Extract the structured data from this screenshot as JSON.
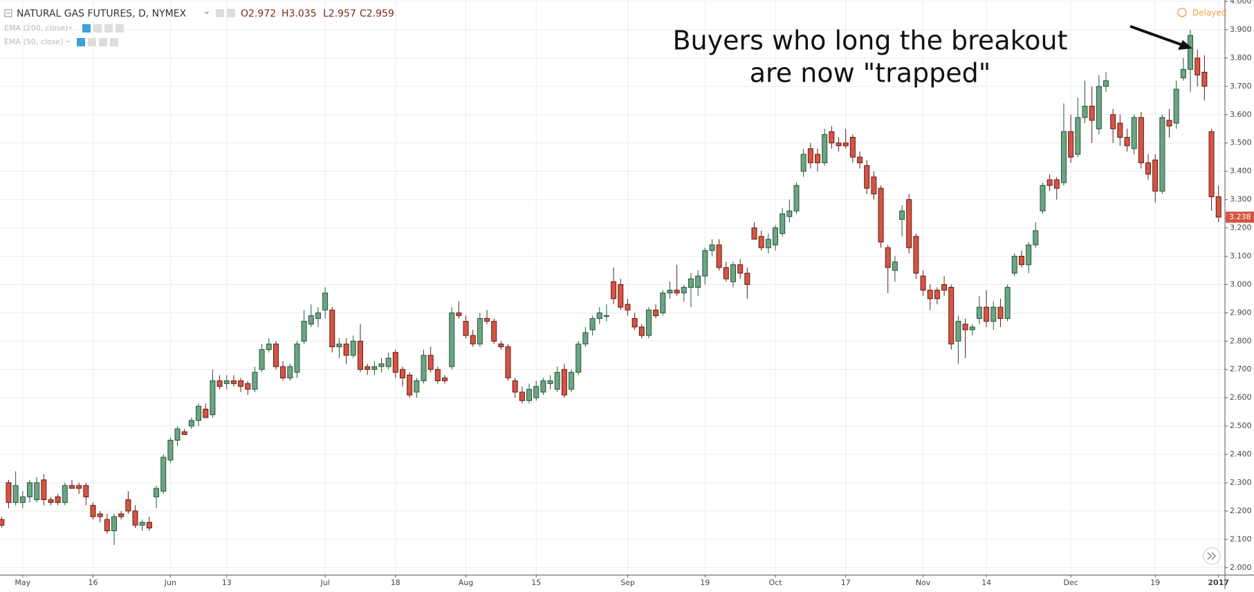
{
  "chart_data": {
    "type": "candlestick",
    "title": "NATURAL GAS FUTURES, D, NYMEX",
    "ohlc_readout": [
      "O2.972",
      "H3.035",
      "L2.957",
      "C2.959"
    ],
    "indicators": [
      "EMA (200, close)",
      "EMA (50, close)"
    ],
    "status": "Delayed",
    "annotation": [
      "Buyers who long the breakout",
      "are now \"trapped\""
    ],
    "last_price_label": "3.238",
    "up_color": "#6ba583",
    "up_border": "#225437",
    "down_color": "#d75442",
    "down_border": "#5b1a13",
    "grid": true,
    "ylim": [
      1.975,
      4.005
    ],
    "yticks": [
      {
        "value": 2.0,
        "label": "2.000"
      },
      {
        "value": 2.1,
        "label": "2.100"
      },
      {
        "value": 2.2,
        "label": "2.200"
      },
      {
        "value": 2.3,
        "label": "2.300"
      },
      {
        "value": 2.4,
        "label": "2.400"
      },
      {
        "value": 2.5,
        "label": "2.500"
      },
      {
        "value": 2.6,
        "label": "2.600"
      },
      {
        "value": 2.7,
        "label": "2.700"
      },
      {
        "value": 2.8,
        "label": "2.800"
      },
      {
        "value": 2.9,
        "label": "2.900"
      },
      {
        "value": 3.0,
        "label": "3.000"
      },
      {
        "value": 3.1,
        "label": "3.100"
      },
      {
        "value": 3.2,
        "label": "3.200"
      },
      {
        "value": 3.3,
        "label": "3.300"
      },
      {
        "value": 3.4,
        "label": "3.400"
      },
      {
        "value": 3.5,
        "label": "3.500"
      },
      {
        "value": 3.6,
        "label": "3.600"
      },
      {
        "value": 3.7,
        "label": "3.700"
      },
      {
        "value": 3.8,
        "label": "3.800"
      },
      {
        "value": 3.9,
        "label": "3.900"
      },
      {
        "value": 4.0,
        "label": "4.000"
      }
    ],
    "categories": [
      null,
      null,
      null,
      "May",
      null,
      null,
      null,
      null,
      null,
      null,
      null,
      null,
      null,
      "16",
      null,
      null,
      null,
      null,
      null,
      null,
      null,
      null,
      null,
      null,
      "Jun",
      null,
      null,
      null,
      null,
      null,
      null,
      null,
      "13",
      null,
      null,
      null,
      null,
      null,
      null,
      null,
      null,
      null,
      null,
      null,
      null,
      null,
      "Jul",
      null,
      null,
      null,
      null,
      null,
      null,
      null,
      null,
      null,
      "18",
      null,
      null,
      null,
      null,
      null,
      null,
      null,
      null,
      null,
      "Aug",
      null,
      null,
      null,
      null,
      null,
      null,
      null,
      null,
      null,
      "15",
      null,
      null,
      null,
      null,
      null,
      null,
      null,
      null,
      null,
      null,
      null,
      null,
      "Sep",
      null,
      null,
      null,
      null,
      null,
      null,
      null,
      null,
      null,
      null,
      "19",
      null,
      null,
      null,
      null,
      null,
      null,
      null,
      null,
      null,
      "Oct",
      null,
      null,
      null,
      null,
      null,
      null,
      null,
      null,
      null,
      "17",
      null,
      null,
      null,
      null,
      null,
      null,
      null,
      null,
      null,
      null,
      "Nov",
      null,
      null,
      null,
      null,
      null,
      null,
      null,
      null,
      "14",
      null,
      null,
      null,
      null,
      null,
      null,
      null,
      null,
      null,
      null,
      null,
      "Dec",
      null,
      null,
      null,
      null,
      null,
      null,
      null,
      null,
      null,
      null,
      null,
      "19",
      null,
      null,
      null,
      null,
      null,
      null,
      null,
      null,
      "2017"
    ],
    "candles": [
      [
        2.17,
        2.18,
        2.14,
        2.15
      ],
      [
        2.3,
        2.31,
        2.21,
        2.23
      ],
      [
        2.23,
        2.34,
        2.22,
        2.29
      ],
      [
        2.23,
        2.27,
        2.21,
        2.25
      ],
      [
        2.25,
        2.31,
        2.23,
        2.3
      ],
      [
        2.24,
        2.32,
        2.23,
        2.3
      ],
      [
        2.31,
        2.33,
        2.22,
        2.24
      ],
      [
        2.24,
        2.25,
        2.22,
        2.23
      ],
      [
        2.25,
        2.26,
        2.22,
        2.23
      ],
      [
        2.23,
        2.3,
        2.22,
        2.29
      ],
      [
        2.29,
        2.31,
        2.28,
        2.28
      ],
      [
        2.29,
        2.3,
        2.26,
        2.28
      ],
      [
        2.29,
        2.3,
        2.22,
        2.25
      ],
      [
        2.22,
        2.23,
        2.17,
        2.18
      ],
      [
        2.19,
        2.2,
        2.16,
        2.18
      ],
      [
        2.17,
        2.19,
        2.12,
        2.13
      ],
      [
        2.13,
        2.19,
        2.08,
        2.18
      ],
      [
        2.19,
        2.2,
        2.17,
        2.18
      ],
      [
        2.24,
        2.27,
        2.19,
        2.2
      ],
      [
        2.2,
        2.22,
        2.14,
        2.15
      ],
      [
        2.15,
        2.17,
        2.13,
        2.16
      ],
      [
        2.16,
        2.18,
        2.13,
        2.14
      ],
      [
        2.25,
        2.29,
        2.21,
        2.28
      ],
      [
        2.27,
        2.4,
        2.26,
        2.39
      ],
      [
        2.38,
        2.46,
        2.37,
        2.45
      ],
      [
        2.45,
        2.5,
        2.43,
        2.49
      ],
      [
        2.48,
        2.49,
        2.47,
        2.47
      ],
      [
        2.5,
        2.53,
        2.49,
        2.52
      ],
      [
        2.52,
        2.58,
        2.5,
        2.57
      ],
      [
        2.56,
        2.58,
        2.53,
        2.53
      ],
      [
        2.54,
        2.7,
        2.53,
        2.66
      ],
      [
        2.66,
        2.68,
        2.63,
        2.64
      ],
      [
        2.65,
        2.68,
        2.63,
        2.66
      ],
      [
        2.66,
        2.68,
        2.64,
        2.65
      ],
      [
        2.66,
        2.67,
        2.62,
        2.64
      ],
      [
        2.65,
        2.66,
        2.61,
        2.63
      ],
      [
        2.63,
        2.71,
        2.62,
        2.69
      ],
      [
        2.7,
        2.79,
        2.69,
        2.77
      ],
      [
        2.77,
        2.81,
        2.76,
        2.79
      ],
      [
        2.79,
        2.8,
        2.7,
        2.71
      ],
      [
        2.71,
        2.73,
        2.66,
        2.67
      ],
      [
        2.67,
        2.72,
        2.66,
        2.71
      ],
      [
        2.69,
        2.8,
        2.67,
        2.79
      ],
      [
        2.8,
        2.91,
        2.79,
        2.87
      ],
      [
        2.86,
        2.93,
        2.85,
        2.89
      ],
      [
        2.88,
        2.92,
        2.85,
        2.9
      ],
      [
        2.91,
        2.99,
        2.88,
        2.97
      ],
      [
        2.91,
        2.92,
        2.76,
        2.78
      ],
      [
        2.78,
        2.81,
        2.74,
        2.79
      ],
      [
        2.79,
        2.81,
        2.72,
        2.75
      ],
      [
        2.75,
        2.82,
        2.74,
        2.8
      ],
      [
        2.8,
        2.86,
        2.69,
        2.7
      ],
      [
        2.71,
        2.72,
        2.68,
        2.7
      ],
      [
        2.7,
        2.73,
        2.68,
        2.71
      ],
      [
        2.71,
        2.74,
        2.69,
        2.72
      ],
      [
        2.71,
        2.76,
        2.7,
        2.74
      ],
      [
        2.76,
        2.77,
        2.67,
        2.69
      ],
      [
        2.7,
        2.71,
        2.64,
        2.67
      ],
      [
        2.68,
        2.69,
        2.6,
        2.61
      ],
      [
        2.62,
        2.67,
        2.6,
        2.66
      ],
      [
        2.66,
        2.77,
        2.65,
        2.75
      ],
      [
        2.75,
        2.78,
        2.69,
        2.7
      ],
      [
        2.7,
        2.71,
        2.65,
        2.66
      ],
      [
        2.67,
        2.68,
        2.65,
        2.66
      ],
      [
        2.71,
        2.92,
        2.7,
        2.9
      ],
      [
        2.9,
        2.94,
        2.88,
        2.89
      ],
      [
        2.87,
        2.89,
        2.81,
        2.82
      ],
      [
        2.82,
        2.84,
        2.78,
        2.79
      ],
      [
        2.79,
        2.9,
        2.78,
        2.88
      ],
      [
        2.88,
        2.91,
        2.86,
        2.87
      ],
      [
        2.87,
        2.88,
        2.79,
        2.8
      ],
      [
        2.79,
        2.8,
        2.77,
        2.78
      ],
      [
        2.78,
        2.79,
        2.66,
        2.67
      ],
      [
        2.66,
        2.67,
        2.6,
        2.62
      ],
      [
        2.62,
        2.64,
        2.58,
        2.59
      ],
      [
        2.59,
        2.65,
        2.58,
        2.63
      ],
      [
        2.6,
        2.66,
        2.59,
        2.64
      ],
      [
        2.62,
        2.67,
        2.61,
        2.66
      ],
      [
        2.65,
        2.68,
        2.63,
        2.66
      ],
      [
        2.63,
        2.71,
        2.62,
        2.69
      ],
      [
        2.7,
        2.72,
        2.6,
        2.61
      ],
      [
        2.63,
        2.7,
        2.62,
        2.69
      ],
      [
        2.69,
        2.8,
        2.68,
        2.79
      ],
      [
        2.79,
        2.85,
        2.78,
        2.83
      ],
      [
        2.84,
        2.89,
        2.82,
        2.88
      ],
      [
        2.88,
        2.92,
        2.86,
        2.9
      ],
      [
        2.89,
        2.93,
        2.87,
        2.89
      ],
      [
        3.01,
        3.06,
        2.93,
        2.95
      ],
      [
        3.0,
        3.02,
        2.91,
        2.92
      ],
      [
        2.93,
        2.95,
        2.89,
        2.91
      ],
      [
        2.88,
        2.9,
        2.84,
        2.85
      ],
      [
        2.85,
        2.86,
        2.81,
        2.82
      ],
      [
        2.82,
        2.92,
        2.81,
        2.91
      ],
      [
        2.91,
        2.93,
        2.88,
        2.89
      ],
      [
        2.9,
        2.98,
        2.89,
        2.97
      ],
      [
        2.97,
        3.01,
        2.95,
        2.98
      ],
      [
        2.98,
        3.07,
        2.96,
        2.97
      ],
      [
        2.97,
        3.0,
        2.94,
        2.99
      ],
      [
        2.99,
        3.04,
        2.92,
        3.02
      ],
      [
        2.99,
        3.05,
        2.96,
        3.03
      ],
      [
        3.03,
        3.13,
        3.0,
        3.12
      ],
      [
        3.12,
        3.16,
        3.1,
        3.14
      ],
      [
        3.14,
        3.16,
        3.05,
        3.06
      ],
      [
        3.06,
        3.08,
        3.01,
        3.02
      ],
      [
        3.01,
        3.08,
        2.99,
        3.07
      ],
      [
        3.07,
        3.09,
        3.02,
        3.04
      ],
      [
        3.04,
        3.06,
        2.95,
        3.0
      ],
      [
        3.2,
        3.22,
        3.16,
        3.16
      ],
      [
        3.17,
        3.19,
        3.12,
        3.13
      ],
      [
        3.13,
        3.18,
        3.11,
        3.16
      ],
      [
        3.14,
        3.21,
        3.12,
        3.2
      ],
      [
        3.18,
        3.27,
        3.17,
        3.25
      ],
      [
        3.24,
        3.3,
        3.22,
        3.26
      ],
      [
        3.26,
        3.36,
        3.25,
        3.35
      ],
      [
        3.4,
        3.48,
        3.38,
        3.46
      ],
      [
        3.48,
        3.5,
        3.41,
        3.43
      ],
      [
        3.46,
        3.48,
        3.4,
        3.43
      ],
      [
        3.43,
        3.55,
        3.42,
        3.53
      ],
      [
        3.54,
        3.56,
        3.48,
        3.5
      ],
      [
        3.5,
        3.52,
        3.47,
        3.49
      ],
      [
        3.5,
        3.55,
        3.48,
        3.49
      ],
      [
        3.52,
        3.53,
        3.43,
        3.45
      ],
      [
        3.45,
        3.47,
        3.41,
        3.43
      ],
      [
        3.42,
        3.44,
        3.32,
        3.34
      ],
      [
        3.38,
        3.4,
        3.3,
        3.32
      ],
      [
        3.34,
        3.35,
        3.13,
        3.15
      ],
      [
        3.13,
        3.14,
        2.97,
        3.06
      ],
      [
        3.05,
        3.1,
        3.01,
        3.08
      ],
      [
        3.23,
        3.28,
        3.17,
        3.26
      ],
      [
        3.3,
        3.32,
        3.11,
        3.13
      ],
      [
        3.17,
        3.18,
        3.02,
        3.04
      ],
      [
        3.03,
        3.05,
        2.96,
        2.98
      ],
      [
        2.98,
        3.0,
        2.91,
        2.95
      ],
      [
        2.98,
        2.99,
        2.93,
        2.95
      ],
      [
        3.0,
        3.03,
        2.96,
        2.98
      ],
      [
        2.99,
        3.0,
        2.77,
        2.79
      ],
      [
        2.8,
        2.89,
        2.72,
        2.87
      ],
      [
        2.86,
        2.88,
        2.74,
        2.84
      ],
      [
        2.84,
        2.86,
        2.82,
        2.85
      ],
      [
        2.88,
        2.96,
        2.86,
        2.92
      ],
      [
        2.92,
        2.98,
        2.85,
        2.87
      ],
      [
        2.87,
        2.94,
        2.84,
        2.92
      ],
      [
        2.92,
        2.95,
        2.85,
        2.88
      ],
      [
        2.88,
        3.0,
        2.87,
        2.99
      ],
      [
        3.04,
        3.11,
        3.03,
        3.1
      ],
      [
        3.1,
        3.12,
        3.06,
        3.07
      ],
      [
        3.07,
        3.15,
        3.04,
        3.14
      ],
      [
        3.14,
        3.22,
        3.13,
        3.19
      ],
      [
        3.26,
        3.36,
        3.25,
        3.35
      ],
      [
        3.37,
        3.39,
        3.33,
        3.35
      ],
      [
        3.37,
        3.38,
        3.3,
        3.34
      ],
      [
        3.36,
        3.64,
        3.35,
        3.54
      ],
      [
        3.54,
        3.6,
        3.43,
        3.45
      ],
      [
        3.46,
        3.66,
        3.45,
        3.59
      ],
      [
        3.59,
        3.72,
        3.57,
        3.63
      ],
      [
        3.63,
        3.7,
        3.5,
        3.58
      ],
      [
        3.55,
        3.74,
        3.53,
        3.7
      ],
      [
        3.7,
        3.75,
        3.68,
        3.72
      ],
      [
        3.6,
        3.62,
        3.5,
        3.55
      ],
      [
        3.57,
        3.6,
        3.49,
        3.52
      ],
      [
        3.52,
        3.55,
        3.47,
        3.49
      ],
      [
        3.48,
        3.6,
        3.46,
        3.59
      ],
      [
        3.59,
        3.61,
        3.41,
        3.43
      ],
      [
        3.43,
        3.46,
        3.37,
        3.39
      ],
      [
        3.44,
        3.46,
        3.29,
        3.33
      ],
      [
        3.33,
        3.6,
        3.32,
        3.59
      ],
      [
        3.58,
        3.62,
        3.52,
        3.56
      ],
      [
        3.57,
        3.72,
        3.55,
        3.69
      ],
      [
        3.73,
        3.8,
        3.72,
        3.76
      ],
      [
        3.76,
        3.9,
        3.68,
        3.88
      ],
      [
        3.8,
        3.83,
        3.7,
        3.74
      ],
      [
        3.75,
        3.81,
        3.65,
        3.7
      ],
      [
        3.54,
        3.55,
        3.26,
        3.31
      ],
      [
        3.31,
        3.35,
        3.22,
        3.238
      ]
    ]
  }
}
